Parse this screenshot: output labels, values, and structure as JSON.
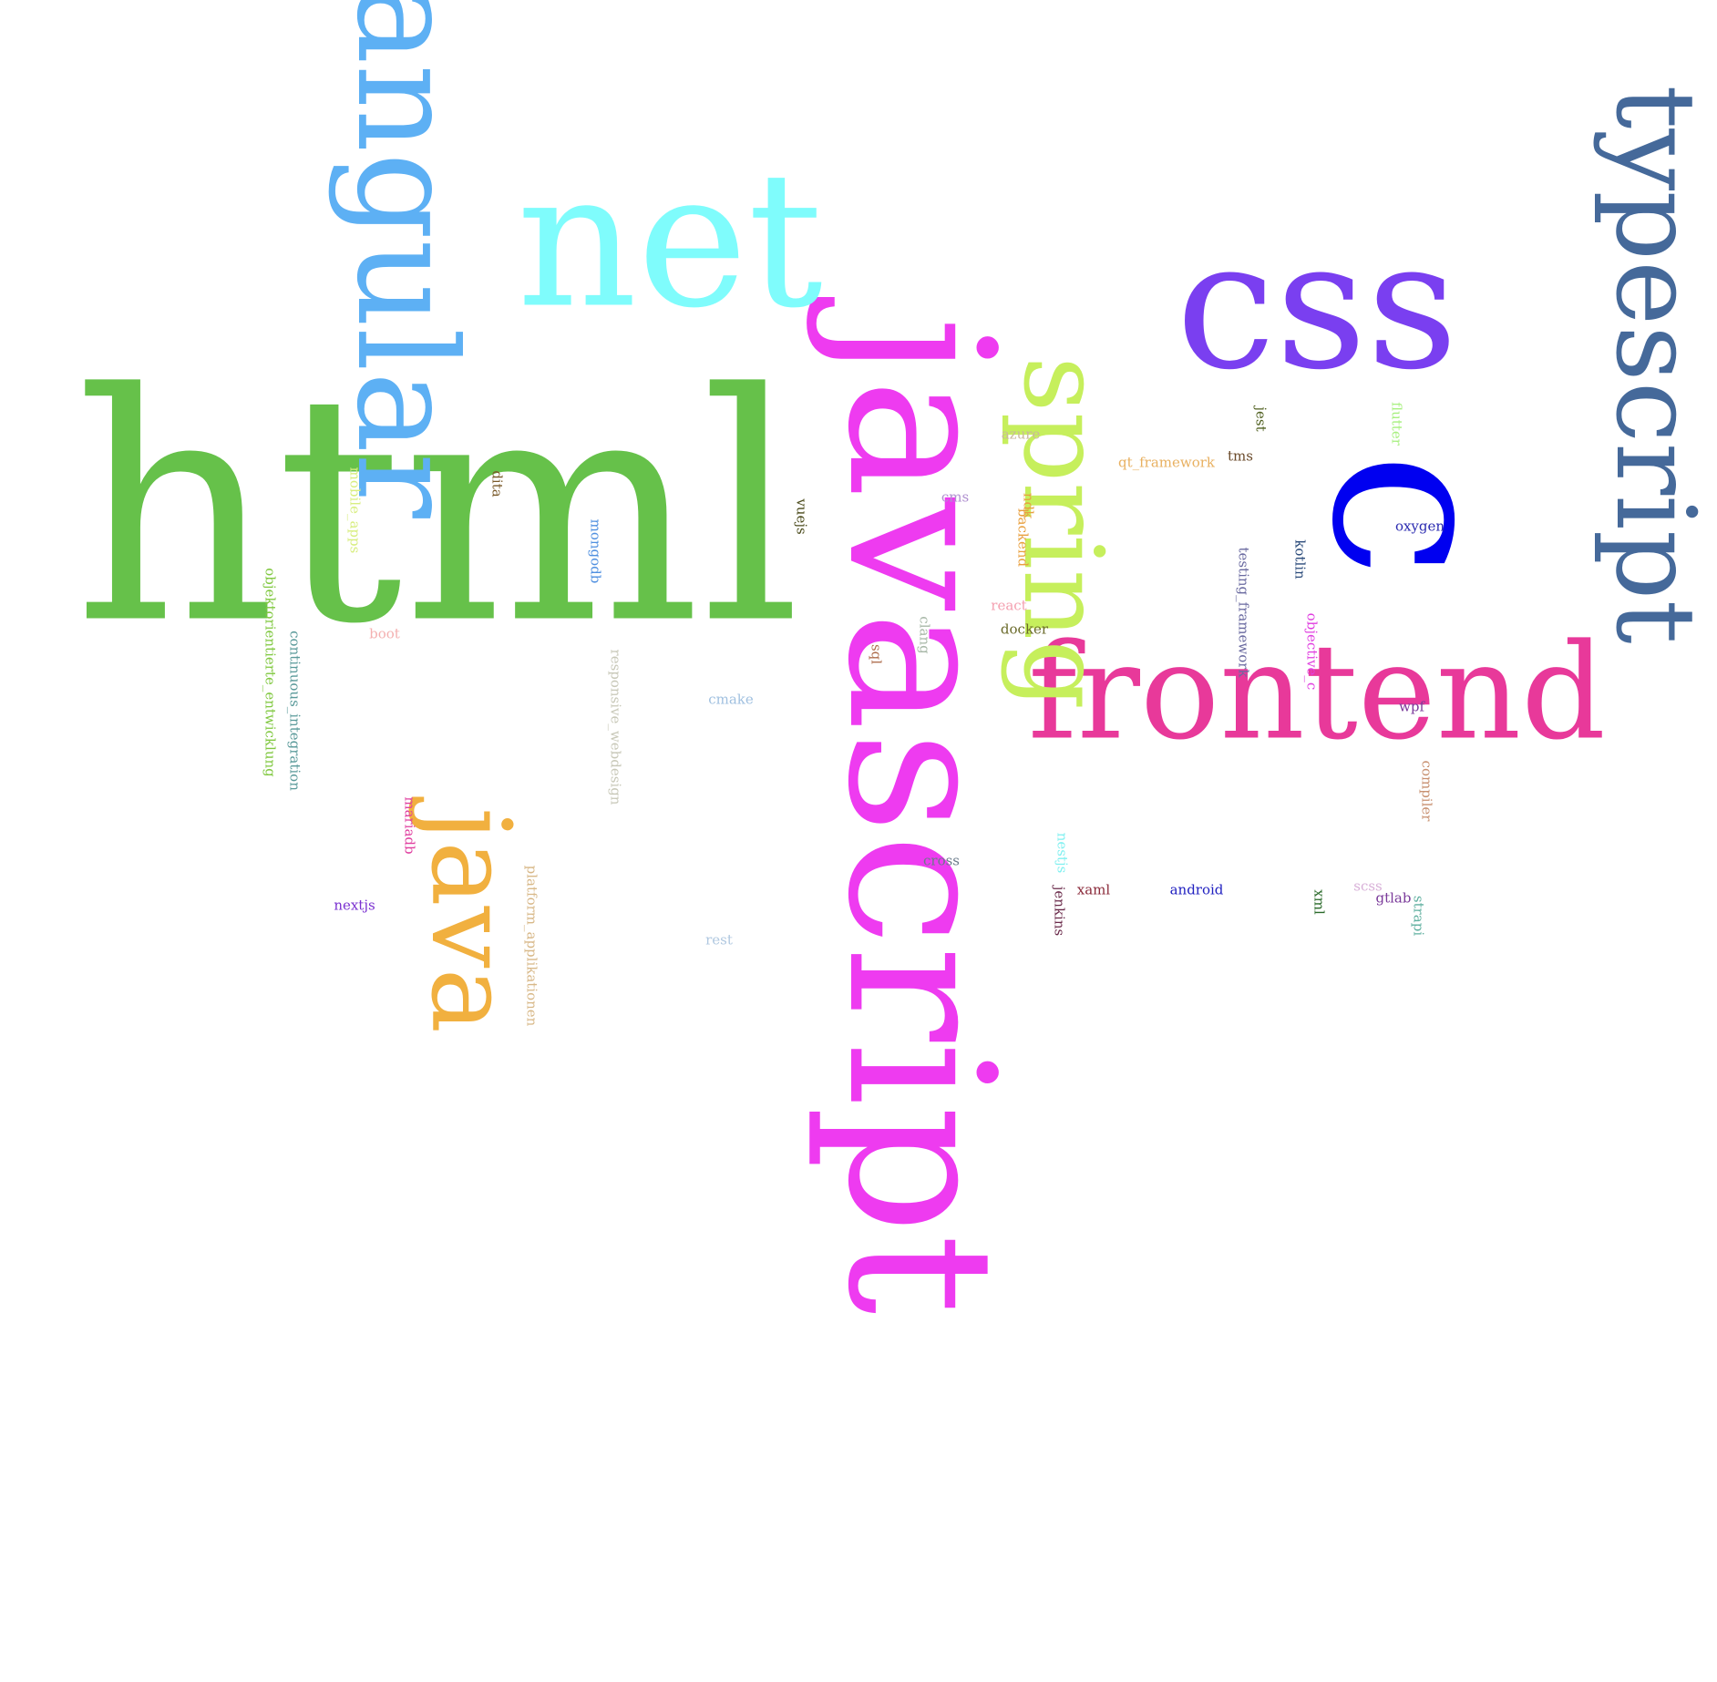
{
  "words": [
    {
      "text": "javascript",
      "color": "#ee3bf0",
      "rotated": true
    },
    {
      "text": "html",
      "color": "#66c14a",
      "rotated": false
    },
    {
      "text": "css",
      "color": "#7a3ff0",
      "rotated": false
    },
    {
      "text": "typescript",
      "color": "#45699a",
      "rotated": true
    },
    {
      "text": "angular",
      "color": "#5db0f4",
      "rotated": true
    },
    {
      "text": "net",
      "color": "#7ffcfc",
      "rotated": false
    },
    {
      "text": "frontend",
      "color": "#e8399a",
      "rotated": false
    },
    {
      "text": "spring",
      "color": "#c6ef5c",
      "rotated": true
    },
    {
      "text": "java",
      "color": "#f1b03f",
      "rotated": true
    },
    {
      "text": "c",
      "color": "#0000f0",
      "rotated": true
    },
    {
      "text": "azure",
      "color": "#c9b99b",
      "rotated": false
    },
    {
      "text": "qt_framework",
      "color": "#e8b060",
      "rotated": false
    },
    {
      "text": "jest",
      "color": "#506020",
      "rotated": true
    },
    {
      "text": "flutter",
      "color": "#a8f080",
      "rotated": true
    },
    {
      "text": "tms",
      "color": "#6a4a2a",
      "rotated": false
    },
    {
      "text": "mobile_apps",
      "color": "#d8ee80",
      "rotated": true
    },
    {
      "text": "dita",
      "color": "#7a5a2a",
      "rotated": true
    },
    {
      "text": "ndk",
      "color": "#e8a040",
      "rotated": true
    },
    {
      "text": "backend",
      "color": "#e8a040",
      "rotated": true
    },
    {
      "text": "cms",
      "color": "#b090d0",
      "rotated": false
    },
    {
      "text": "vuejs",
      "color": "#4a4a1a",
      "rotated": true
    },
    {
      "text": "mongodb",
      "color": "#5090e0",
      "rotated": true
    },
    {
      "text": "objektorientierte_entwicklung",
      "color": "#80c840",
      "rotated": true
    },
    {
      "text": "continuous_integration",
      "color": "#5a9a9a",
      "rotated": true
    },
    {
      "text": "testing_framework",
      "color": "#6a6aa0",
      "rotated": true
    },
    {
      "text": "kotlin",
      "color": "#2a4a7a",
      "rotated": true
    },
    {
      "text": "oxygen",
      "color": "#2a2ab0",
      "rotated": false
    },
    {
      "text": "react",
      "color": "#f4a0b0",
      "rotated": false
    },
    {
      "text": "clang",
      "color": "#a8b8a8",
      "rotated": true
    },
    {
      "text": "docker",
      "color": "#6a6a2a",
      "rotated": false
    },
    {
      "text": "boot",
      "color": "#f4b0b0",
      "rotated": false
    },
    {
      "text": "responsive_webdesign",
      "color": "#c8c8b8",
      "rotated": true
    },
    {
      "text": "sql",
      "color": "#b07050",
      "rotated": true
    },
    {
      "text": "objective_c",
      "color": "#e040e0",
      "rotated": true
    },
    {
      "text": "cmake",
      "color": "#a0c0e0",
      "rotated": false
    },
    {
      "text": "wpf",
      "color": "#7a3a9a",
      "rotated": false
    },
    {
      "text": "compiler",
      "color": "#c89070",
      "rotated": true
    },
    {
      "text": "mariadb",
      "color": "#e040a0",
      "rotated": true
    },
    {
      "text": "nestjs",
      "color": "#80f0f0",
      "rotated": true
    },
    {
      "text": "cross",
      "color": "#6a7a8a",
      "rotated": false
    },
    {
      "text": "platform_applikationen",
      "color": "#d8b888",
      "rotated": true
    },
    {
      "text": "xaml",
      "color": "#8a2a3a",
      "rotated": false
    },
    {
      "text": "android",
      "color": "#2020c0",
      "rotated": false
    },
    {
      "text": "jenkins",
      "color": "#6a2a4a",
      "rotated": true
    },
    {
      "text": "scss",
      "color": "#d8b0d8",
      "rotated": false
    },
    {
      "text": "xml",
      "color": "#2a6a2a",
      "rotated": true
    },
    {
      "text": "gtlab",
      "color": "#7a3a9a",
      "rotated": false
    },
    {
      "text": "strapi",
      "color": "#60b0a0",
      "rotated": true
    },
    {
      "text": "nextjs",
      "color": "#7a30d0",
      "rotated": false
    },
    {
      "text": "rest",
      "color": "#b0c8e0",
      "rotated": false
    }
  ]
}
